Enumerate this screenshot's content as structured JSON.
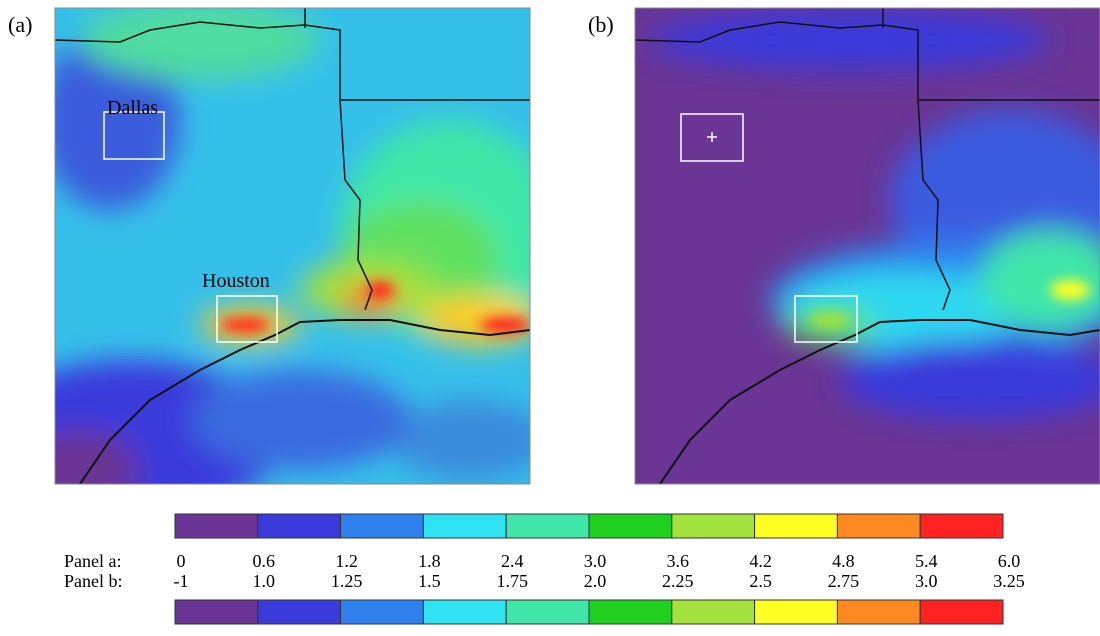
{
  "panels": [
    {
      "label": "(a)",
      "cities": [
        "Dallas",
        "Houston"
      ]
    },
    {
      "label": "(b)"
    }
  ],
  "colorbar": {
    "colors": [
      "#6a3594",
      "#3b3bdc",
      "#2f82ee",
      "#2fe2f2",
      "#40e6a8",
      "#1fd01f",
      "#a2e23c",
      "#ffff22",
      "#ff8a22",
      "#ff2222"
    ],
    "rows": [
      {
        "name": "Panel a:",
        "ticks": [
          0,
          0.6,
          1.2,
          1.8,
          2.4,
          {
            "value": 3.0,
            "label": "3.0"
          },
          3.6,
          4.2,
          4.8,
          5.4,
          {
            "value": 6.0,
            "label": "6.0"
          }
        ]
      },
      {
        "name": "Panel b:",
        "ticks": [
          -1,
          {
            "value": 1.0,
            "label": "1.0"
          },
          1.25,
          1.5,
          1.75,
          {
            "value": 2.0,
            "label": "2.0"
          },
          2.25,
          2.5,
          2.75,
          {
            "value": 3.0,
            "label": "3.0"
          },
          3.25
        ]
      }
    ]
  }
}
